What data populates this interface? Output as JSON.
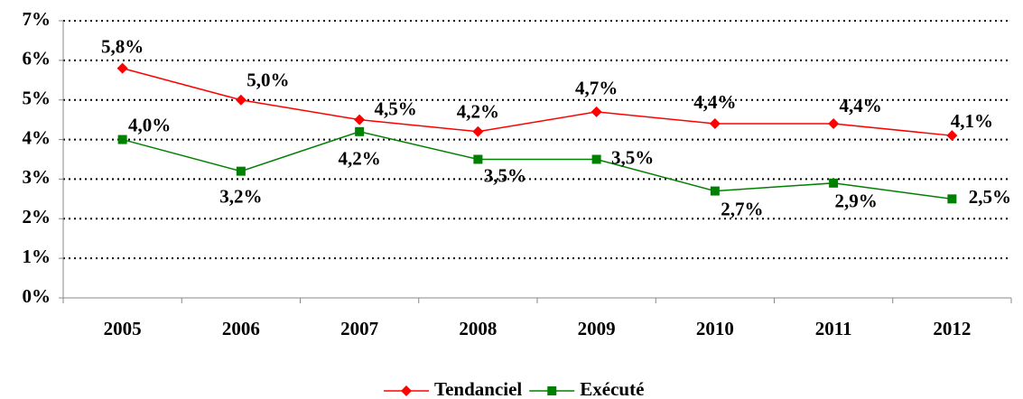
{
  "chart_data": {
    "type": "line",
    "categories": [
      "2005",
      "2006",
      "2007",
      "2008",
      "2009",
      "2010",
      "2011",
      "2012"
    ],
    "series": [
      {
        "name": "Tendanciel",
        "color": "#ff0000",
        "marker": "diamond",
        "values": [
          5.8,
          5.0,
          4.5,
          4.2,
          4.7,
          4.4,
          4.4,
          4.1
        ],
        "value_labels": [
          "5,8%",
          "5,0%",
          "4,5%",
          "4,2%",
          "4,7%",
          "4,4%",
          "4,4%",
          "4,1%"
        ]
      },
      {
        "name": "Exécuté",
        "color": "#008000",
        "marker": "square",
        "values": [
          4.0,
          3.2,
          4.2,
          3.5,
          3.5,
          2.7,
          2.9,
          2.5
        ],
        "value_labels": [
          "4,0%",
          "3,2%",
          "4,2%",
          "3,5%",
          "3,5%",
          "2,7%",
          "2,9%",
          "2,5%"
        ]
      }
    ],
    "ylim": [
      0,
      7
    ],
    "yticks": [
      {
        "value": 0,
        "label": "0%"
      },
      {
        "value": 1,
        "label": "1%"
      },
      {
        "value": 2,
        "label": "2%"
      },
      {
        "value": 3,
        "label": "3%"
      },
      {
        "value": 4,
        "label": "4%"
      },
      {
        "value": 5,
        "label": "5%"
      },
      {
        "value": 6,
        "label": "6%"
      },
      {
        "value": 7,
        "label": "7%"
      }
    ],
    "grid": true,
    "legend": "bottom"
  }
}
